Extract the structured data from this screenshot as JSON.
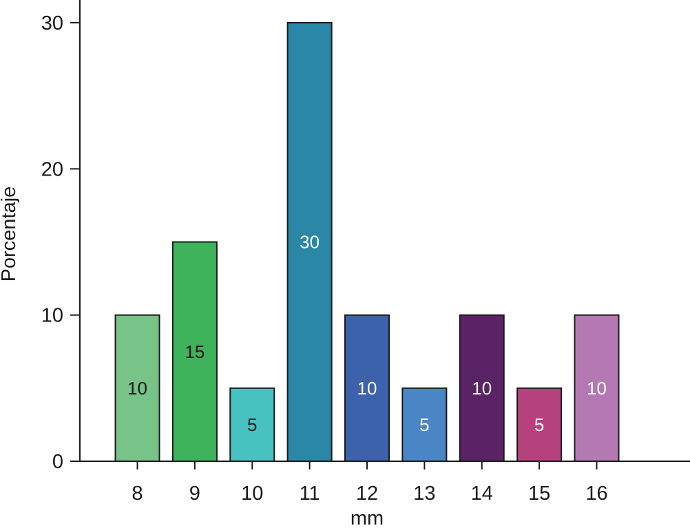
{
  "chart_data": {
    "type": "bar",
    "title": "",
    "xlabel": "mm",
    "ylabel": "Porcentaje",
    "ylim": [
      0,
      30
    ],
    "yticks": [
      0,
      10,
      20,
      30
    ],
    "grid": false,
    "categories": [
      "8",
      "9",
      "10",
      "11",
      "12",
      "13",
      "14",
      "15",
      "16"
    ],
    "values": [
      10,
      15,
      5,
      30,
      10,
      5,
      10,
      5,
      10
    ],
    "data_labels": [
      "10",
      "15",
      "5",
      "30",
      "10",
      "5",
      "10",
      "5",
      "10"
    ],
    "colors": [
      "#78c387",
      "#3fb35b",
      "#48c1c1",
      "#2a87a6",
      "#3b62ab",
      "#4a86c6",
      "#5a2366",
      "#b5427d",
      "#b479b2"
    ],
    "label_colors": [
      "#1a1a1a",
      "#1a1a1a",
      "#1a1a1a",
      "#ffffff",
      "#ffffff",
      "#ffffff",
      "#ffffff",
      "#ffffff",
      "#ffffff"
    ]
  }
}
